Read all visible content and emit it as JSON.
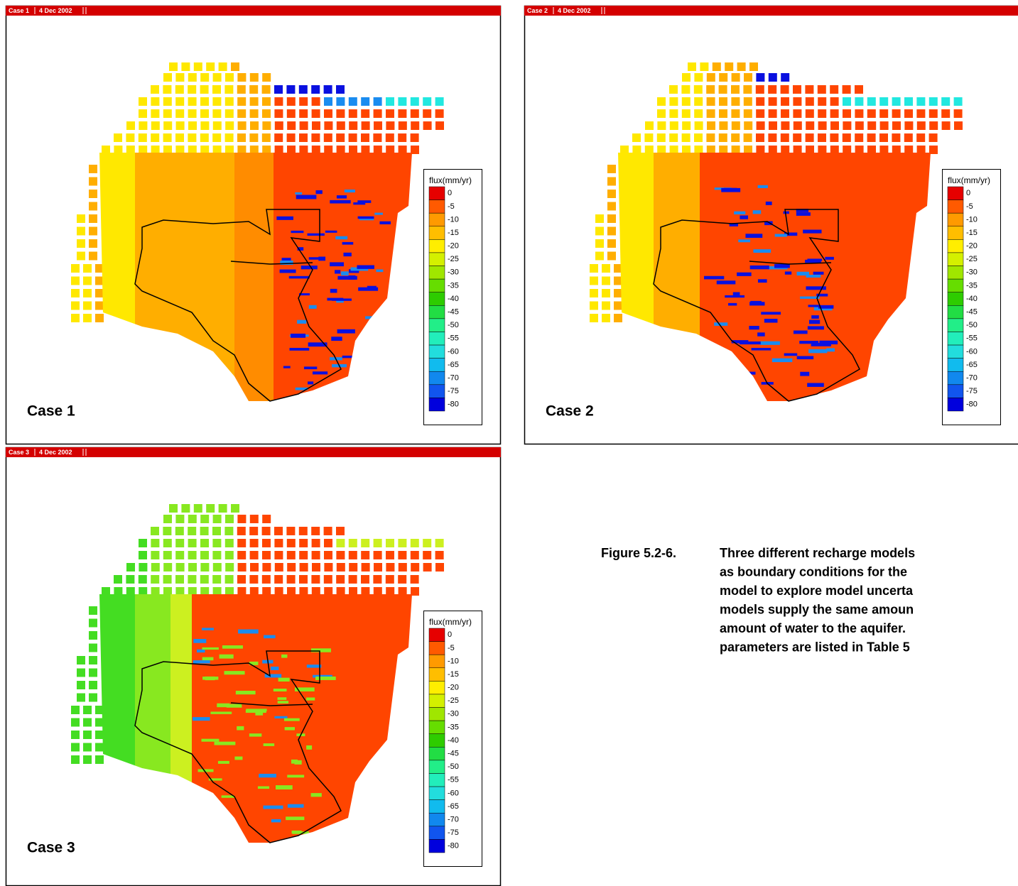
{
  "panels": [
    {
      "header": {
        "case": "Case 1",
        "date": "4 Dec 2002"
      },
      "label": "Case 1"
    },
    {
      "header": {
        "case": "Case 2",
        "date": "4 Dec 2002"
      },
      "label": "Case 2"
    },
    {
      "header": {
        "case": "Case 3",
        "date": "4 Dec 2002"
      },
      "label": "Case 3"
    }
  ],
  "legend": {
    "title": "flux(mm/yr)",
    "items": [
      {
        "label": "0",
        "color": "#e60000"
      },
      {
        "label": "-5",
        "color": "#ff5a00"
      },
      {
        "label": "-10",
        "color": "#ff9a00"
      },
      {
        "label": "-15",
        "color": "#ffbe00"
      },
      {
        "label": "-20",
        "color": "#ffee00"
      },
      {
        "label": "-25",
        "color": "#d4f000"
      },
      {
        "label": "-30",
        "color": "#a0e600"
      },
      {
        "label": "-35",
        "color": "#66dd00"
      },
      {
        "label": "-40",
        "color": "#2ecc00"
      },
      {
        "label": "-45",
        "color": "#22dd44"
      },
      {
        "label": "-50",
        "color": "#22ee88"
      },
      {
        "label": "-55",
        "color": "#22eebb"
      },
      {
        "label": "-60",
        "color": "#22dddd"
      },
      {
        "label": "-65",
        "color": "#11bbee"
      },
      {
        "label": "-70",
        "color": "#1188ee"
      },
      {
        "label": "-75",
        "color": "#1155ee"
      },
      {
        "label": "-80",
        "color": "#0000dd"
      }
    ]
  },
  "caption": {
    "number": "Figure 5.2-6.",
    "lines": [
      "Three different recharge models",
      "as boundary conditions for the",
      "model to explore model uncerta",
      "models supply the same amoun",
      "amount of water to the aquifer.",
      "parameters are listed in Table 5"
    ]
  }
}
